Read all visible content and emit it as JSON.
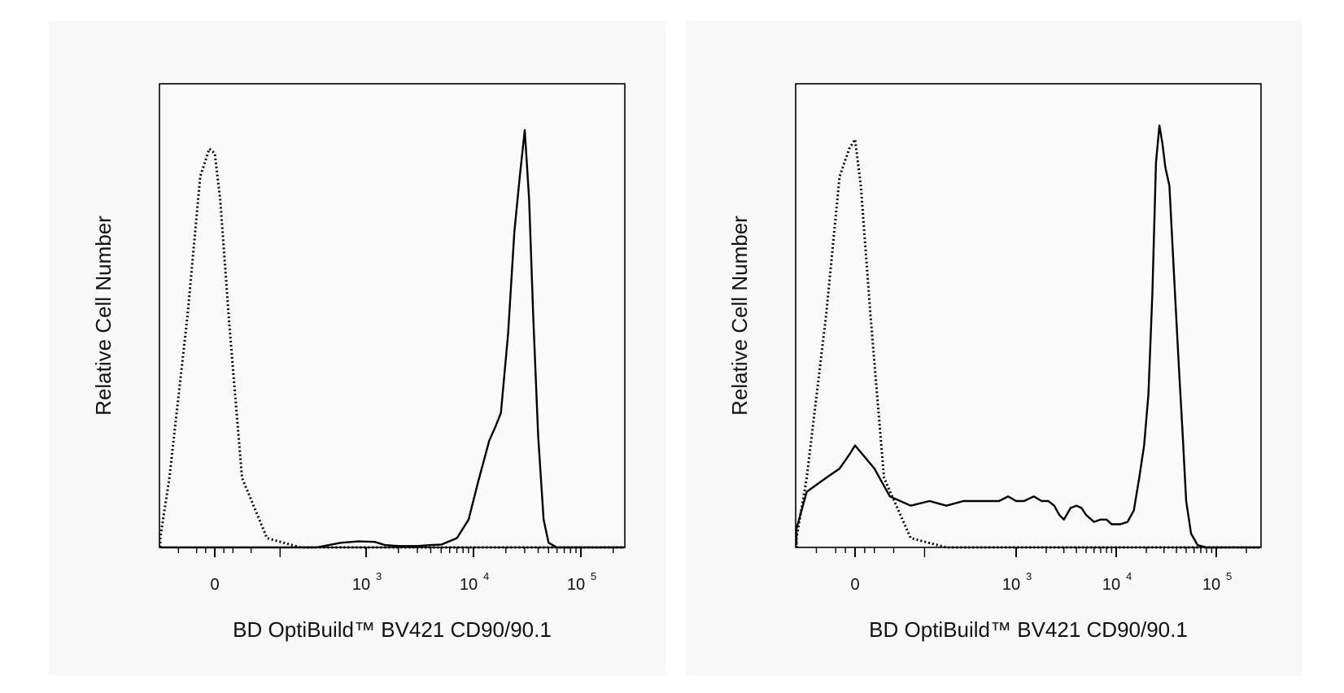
{
  "chart_data": [
    {
      "type": "line",
      "xscale": "biexponential",
      "xlabel": "BD OptiBuild™ BV421 CD90/90.1",
      "ylabel": "Relative Cell Number",
      "ylim": [
        0,
        1
      ],
      "xticks": [
        {
          "value": 0,
          "base": "0",
          "exp": ""
        },
        {
          "value": 1000,
          "base": "10",
          "exp": "3"
        },
        {
          "value": 10000,
          "base": "10",
          "exp": "4"
        },
        {
          "value": 100000,
          "base": "10",
          "exp": "5"
        }
      ],
      "series": [
        {
          "style": "dotted",
          "x": [
            -600,
            -400,
            -250,
            -150,
            -80,
            -30,
            0,
            30,
            80,
            150,
            250,
            400,
            600,
            800,
            1000,
            3000,
            10000,
            100000,
            300000
          ],
          "y": [
            0,
            0.02,
            0.15,
            0.5,
            0.8,
            0.86,
            0.85,
            0.75,
            0.48,
            0.15,
            0.02,
            0,
            0,
            0,
            0,
            0,
            0,
            0,
            0
          ]
        },
        {
          "style": "solid",
          "x": [
            -600,
            0,
            300,
            500,
            700,
            900,
            1200,
            1500,
            2000,
            3000,
            4000,
            5000,
            7000,
            9000,
            11000,
            14000,
            16000,
            18000,
            21000,
            24000,
            27000,
            30000,
            33000,
            36000,
            40000,
            45000,
            50000,
            60000,
            80000,
            300000
          ],
          "y": [
            0,
            0,
            0,
            0,
            0.01,
            0.013,
            0.012,
            0.005,
            0.003,
            0.003,
            0.005,
            0.006,
            0.02,
            0.06,
            0.14,
            0.23,
            0.26,
            0.29,
            0.46,
            0.68,
            0.8,
            0.9,
            0.75,
            0.5,
            0.24,
            0.06,
            0.01,
            0,
            0,
            0
          ]
        }
      ]
    },
    {
      "type": "line",
      "xscale": "biexponential",
      "xlabel": "BD OptiBuild™ BV421 CD90/90.1",
      "ylabel": "Relative Cell Number",
      "ylim": [
        0,
        1
      ],
      "xticks": [
        {
          "value": 0,
          "base": "0",
          "exp": ""
        },
        {
          "value": 1000,
          "base": "10",
          "exp": "3"
        },
        {
          "value": 10000,
          "base": "10",
          "exp": "4"
        },
        {
          "value": 100000,
          "base": "10",
          "exp": "5"
        }
      ],
      "series": [
        {
          "style": "dotted",
          "x": [
            -600,
            -400,
            -250,
            -150,
            -80,
            -30,
            0,
            30,
            80,
            150,
            250,
            400,
            600,
            800,
            1000,
            3000,
            10000,
            100000,
            300000
          ],
          "y": [
            0,
            0.02,
            0.15,
            0.5,
            0.8,
            0.86,
            0.88,
            0.78,
            0.5,
            0.15,
            0.02,
            0,
            0,
            0,
            0,
            0,
            0,
            0,
            0
          ]
        },
        {
          "style": "solid",
          "x": [
            -600,
            -400,
            -250,
            -150,
            -80,
            -30,
            0,
            40,
            100,
            180,
            250,
            320,
            400,
            500,
            600,
            700,
            800,
            900,
            1000,
            1200,
            1500,
            1800,
            2100,
            2400,
            2700,
            3000,
            3500,
            4000,
            4500,
            5000,
            6000,
            7000,
            8000,
            9000,
            10000,
            11000,
            13000,
            15000,
            17000,
            19000,
            21000,
            23000,
            25000,
            27000,
            29000,
            31000,
            34000,
            38000,
            42000,
            46000,
            50000,
            56000,
            65000,
            80000,
            300000
          ],
          "y": [
            0.005,
            0.04,
            0.12,
            0.15,
            0.17,
            0.2,
            0.22,
            0.2,
            0.17,
            0.11,
            0.09,
            0.1,
            0.09,
            0.1,
            0.1,
            0.1,
            0.1,
            0.11,
            0.1,
            0.1,
            0.11,
            0.1,
            0.1,
            0.09,
            0.07,
            0.06,
            0.085,
            0.09,
            0.085,
            0.07,
            0.055,
            0.06,
            0.06,
            0.05,
            0.05,
            0.05,
            0.055,
            0.08,
            0.15,
            0.22,
            0.33,
            0.55,
            0.83,
            0.91,
            0.87,
            0.82,
            0.78,
            0.58,
            0.4,
            0.25,
            0.1,
            0.03,
            0.005,
            0,
            0
          ]
        }
      ]
    }
  ]
}
